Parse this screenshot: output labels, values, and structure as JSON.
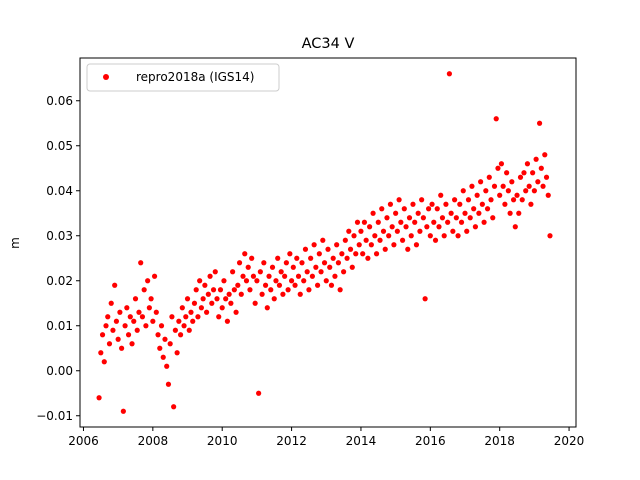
{
  "chart_data": {
    "type": "scatter",
    "title": "AC34 V",
    "xlabel": "",
    "ylabel": "m",
    "xlim": [
      2005.9,
      2020.2
    ],
    "ylim": [
      -0.0125,
      0.0695
    ],
    "xticks": [
      2006,
      2008,
      2010,
      2012,
      2014,
      2016,
      2018,
      2020
    ],
    "xtick_labels": [
      "2006",
      "2008",
      "2010",
      "2012",
      "2014",
      "2016",
      "2018",
      "2020"
    ],
    "yticks": [
      -0.01,
      0.0,
      0.01,
      0.02,
      0.03,
      0.04,
      0.05,
      0.06
    ],
    "ytick_labels": [
      "−0.01",
      "0.00",
      "0.01",
      "0.02",
      "0.03",
      "0.04",
      "0.05",
      "0.06"
    ],
    "legend": {
      "position": "upper-left",
      "entries": [
        "repro2018a (IGS14)"
      ]
    },
    "grid": false,
    "series": [
      {
        "name": "repro2018a (IGS14)",
        "color": "#ff0000",
        "marker": "circle",
        "points": [
          [
            2006.45,
            -0.006
          ],
          [
            2006.5,
            0.004
          ],
          [
            2006.55,
            0.008
          ],
          [
            2006.6,
            0.002
          ],
          [
            2006.65,
            0.01
          ],
          [
            2006.7,
            0.012
          ],
          [
            2006.75,
            0.006
          ],
          [
            2006.8,
            0.015
          ],
          [
            2006.85,
            0.009
          ],
          [
            2006.9,
            0.019
          ],
          [
            2006.95,
            0.011
          ],
          [
            2007.0,
            0.007
          ],
          [
            2007.05,
            0.013
          ],
          [
            2007.1,
            0.005
          ],
          [
            2007.15,
            -0.009
          ],
          [
            2007.2,
            0.01
          ],
          [
            2007.25,
            0.014
          ],
          [
            2007.3,
            0.008
          ],
          [
            2007.35,
            0.012
          ],
          [
            2007.4,
            0.006
          ],
          [
            2007.45,
            0.011
          ],
          [
            2007.5,
            0.016
          ],
          [
            2007.55,
            0.009
          ],
          [
            2007.6,
            0.013
          ],
          [
            2007.65,
            0.024
          ],
          [
            2007.7,
            0.012
          ],
          [
            2007.75,
            0.018
          ],
          [
            2007.8,
            0.01
          ],
          [
            2007.85,
            0.02
          ],
          [
            2007.9,
            0.014
          ],
          [
            2007.95,
            0.016
          ],
          [
            2008.0,
            0.011
          ],
          [
            2008.05,
            0.021
          ],
          [
            2008.1,
            0.013
          ],
          [
            2008.15,
            0.008
          ],
          [
            2008.2,
            0.005
          ],
          [
            2008.25,
            0.01
          ],
          [
            2008.3,
            0.003
          ],
          [
            2008.35,
            0.007
          ],
          [
            2008.4,
            0.001
          ],
          [
            2008.45,
            -0.003
          ],
          [
            2008.5,
            0.006
          ],
          [
            2008.55,
            0.012
          ],
          [
            2008.6,
            -0.008
          ],
          [
            2008.65,
            0.009
          ],
          [
            2008.7,
            0.004
          ],
          [
            2008.75,
            0.011
          ],
          [
            2008.8,
            0.008
          ],
          [
            2008.85,
            0.014
          ],
          [
            2008.9,
            0.01
          ],
          [
            2008.95,
            0.012
          ],
          [
            2009.0,
            0.016
          ],
          [
            2009.05,
            0.009
          ],
          [
            2009.1,
            0.013
          ],
          [
            2009.15,
            0.011
          ],
          [
            2009.2,
            0.015
          ],
          [
            2009.25,
            0.018
          ],
          [
            2009.3,
            0.012
          ],
          [
            2009.35,
            0.02
          ],
          [
            2009.4,
            0.014
          ],
          [
            2009.45,
            0.016
          ],
          [
            2009.5,
            0.019
          ],
          [
            2009.55,
            0.013
          ],
          [
            2009.6,
            0.017
          ],
          [
            2009.65,
            0.021
          ],
          [
            2009.7,
            0.015
          ],
          [
            2009.75,
            0.018
          ],
          [
            2009.8,
            0.022
          ],
          [
            2009.85,
            0.016
          ],
          [
            2009.9,
            0.012
          ],
          [
            2009.95,
            0.018
          ],
          [
            2010.0,
            0.014
          ],
          [
            2010.05,
            0.02
          ],
          [
            2010.1,
            0.016
          ],
          [
            2010.15,
            0.011
          ],
          [
            2010.2,
            0.017
          ],
          [
            2010.25,
            0.015
          ],
          [
            2010.3,
            0.022
          ],
          [
            2010.35,
            0.018
          ],
          [
            2010.4,
            0.013
          ],
          [
            2010.45,
            0.019
          ],
          [
            2010.5,
            0.024
          ],
          [
            2010.55,
            0.017
          ],
          [
            2010.6,
            0.021
          ],
          [
            2010.65,
            0.026
          ],
          [
            2010.7,
            0.02
          ],
          [
            2010.75,
            0.023
          ],
          [
            2010.8,
            0.018
          ],
          [
            2010.85,
            0.025
          ],
          [
            2010.9,
            0.021
          ],
          [
            2010.95,
            0.015
          ],
          [
            2011.0,
            0.02
          ],
          [
            2011.05,
            -0.005
          ],
          [
            2011.1,
            0.022
          ],
          [
            2011.15,
            0.017
          ],
          [
            2011.2,
            0.024
          ],
          [
            2011.25,
            0.019
          ],
          [
            2011.3,
            0.014
          ],
          [
            2011.35,
            0.021
          ],
          [
            2011.4,
            0.018
          ],
          [
            2011.45,
            0.023
          ],
          [
            2011.5,
            0.016
          ],
          [
            2011.55,
            0.02
          ],
          [
            2011.6,
            0.025
          ],
          [
            2011.65,
            0.019
          ],
          [
            2011.7,
            0.022
          ],
          [
            2011.75,
            0.017
          ],
          [
            2011.8,
            0.021
          ],
          [
            2011.85,
            0.024
          ],
          [
            2011.9,
            0.018
          ],
          [
            2011.95,
            0.026
          ],
          [
            2012.0,
            0.02
          ],
          [
            2012.05,
            0.023
          ],
          [
            2012.1,
            0.019
          ],
          [
            2012.15,
            0.025
          ],
          [
            2012.2,
            0.021
          ],
          [
            2012.25,
            0.017
          ],
          [
            2012.3,
            0.024
          ],
          [
            2012.35,
            0.02
          ],
          [
            2012.4,
            0.027
          ],
          [
            2012.45,
            0.022
          ],
          [
            2012.5,
            0.018
          ],
          [
            2012.55,
            0.025
          ],
          [
            2012.6,
            0.021
          ],
          [
            2012.65,
            0.028
          ],
          [
            2012.7,
            0.023
          ],
          [
            2012.75,
            0.019
          ],
          [
            2012.8,
            0.026
          ],
          [
            2012.85,
            0.022
          ],
          [
            2012.9,
            0.029
          ],
          [
            2012.95,
            0.024
          ],
          [
            2013.0,
            0.02
          ],
          [
            2013.05,
            0.027
          ],
          [
            2013.1,
            0.023
          ],
          [
            2013.15,
            0.019
          ],
          [
            2013.2,
            0.025
          ],
          [
            2013.25,
            0.021
          ],
          [
            2013.3,
            0.028
          ],
          [
            2013.35,
            0.024
          ],
          [
            2013.4,
            0.018
          ],
          [
            2013.45,
            0.026
          ],
          [
            2013.5,
            0.022
          ],
          [
            2013.55,
            0.029
          ],
          [
            2013.6,
            0.025
          ],
          [
            2013.65,
            0.031
          ],
          [
            2013.7,
            0.027
          ],
          [
            2013.75,
            0.023
          ],
          [
            2013.8,
            0.03
          ],
          [
            2013.85,
            0.026
          ],
          [
            2013.9,
            0.033
          ],
          [
            2013.95,
            0.028
          ],
          [
            2014.0,
            0.031
          ],
          [
            2014.05,
            0.026
          ],
          [
            2014.1,
            0.033
          ],
          [
            2014.15,
            0.029
          ],
          [
            2014.2,
            0.025
          ],
          [
            2014.25,
            0.032
          ],
          [
            2014.3,
            0.028
          ],
          [
            2014.35,
            0.035
          ],
          [
            2014.4,
            0.03
          ],
          [
            2014.45,
            0.026
          ],
          [
            2014.5,
            0.033
          ],
          [
            2014.55,
            0.029
          ],
          [
            2014.6,
            0.036
          ],
          [
            2014.65,
            0.031
          ],
          [
            2014.7,
            0.027
          ],
          [
            2014.75,
            0.034
          ],
          [
            2014.8,
            0.03
          ],
          [
            2014.85,
            0.037
          ],
          [
            2014.9,
            0.032
          ],
          [
            2014.95,
            0.028
          ],
          [
            2015.0,
            0.035
          ],
          [
            2015.05,
            0.031
          ],
          [
            2015.1,
            0.038
          ],
          [
            2015.15,
            0.033
          ],
          [
            2015.2,
            0.029
          ],
          [
            2015.25,
            0.036
          ],
          [
            2015.3,
            0.032
          ],
          [
            2015.35,
            0.027
          ],
          [
            2015.4,
            0.034
          ],
          [
            2015.45,
            0.03
          ],
          [
            2015.5,
            0.037
          ],
          [
            2015.55,
            0.033
          ],
          [
            2015.6,
            0.028
          ],
          [
            2015.65,
            0.035
          ],
          [
            2015.7,
            0.031
          ],
          [
            2015.75,
            0.038
          ],
          [
            2015.8,
            0.034
          ],
          [
            2015.85,
            0.016
          ],
          [
            2015.9,
            0.032
          ],
          [
            2015.95,
            0.036
          ],
          [
            2016.0,
            0.03
          ],
          [
            2016.05,
            0.037
          ],
          [
            2016.1,
            0.033
          ],
          [
            2016.15,
            0.029
          ],
          [
            2016.2,
            0.036
          ],
          [
            2016.25,
            0.032
          ],
          [
            2016.3,
            0.039
          ],
          [
            2016.35,
            0.034
          ],
          [
            2016.4,
            0.03
          ],
          [
            2016.45,
            0.037
          ],
          [
            2016.5,
            0.033
          ],
          [
            2016.55,
            0.066
          ],
          [
            2016.6,
            0.035
          ],
          [
            2016.65,
            0.031
          ],
          [
            2016.7,
            0.038
          ],
          [
            2016.75,
            0.034
          ],
          [
            2016.8,
            0.03
          ],
          [
            2016.85,
            0.037
          ],
          [
            2016.9,
            0.033
          ],
          [
            2016.95,
            0.04
          ],
          [
            2017.0,
            0.035
          ],
          [
            2017.05,
            0.031
          ],
          [
            2017.1,
            0.038
          ],
          [
            2017.15,
            0.034
          ],
          [
            2017.2,
            0.041
          ],
          [
            2017.25,
            0.036
          ],
          [
            2017.3,
            0.032
          ],
          [
            2017.35,
            0.039
          ],
          [
            2017.4,
            0.035
          ],
          [
            2017.45,
            0.042
          ],
          [
            2017.5,
            0.037
          ],
          [
            2017.55,
            0.033
          ],
          [
            2017.6,
            0.04
          ],
          [
            2017.65,
            0.036
          ],
          [
            2017.7,
            0.043
          ],
          [
            2017.75,
            0.038
          ],
          [
            2017.8,
            0.034
          ],
          [
            2017.85,
            0.041
          ],
          [
            2017.9,
            0.056
          ],
          [
            2017.95,
            0.045
          ],
          [
            2018.0,
            0.039
          ],
          [
            2018.05,
            0.046
          ],
          [
            2018.1,
            0.041
          ],
          [
            2018.15,
            0.037
          ],
          [
            2018.2,
            0.044
          ],
          [
            2018.25,
            0.04
          ],
          [
            2018.3,
            0.035
          ],
          [
            2018.35,
            0.042
          ],
          [
            2018.4,
            0.038
          ],
          [
            2018.45,
            0.032
          ],
          [
            2018.5,
            0.039
          ],
          [
            2018.55,
            0.035
          ],
          [
            2018.6,
            0.043
          ],
          [
            2018.65,
            0.038
          ],
          [
            2018.7,
            0.044
          ],
          [
            2018.75,
            0.04
          ],
          [
            2018.8,
            0.046
          ],
          [
            2018.85,
            0.041
          ],
          [
            2018.9,
            0.037
          ],
          [
            2018.95,
            0.044
          ],
          [
            2019.0,
            0.04
          ],
          [
            2019.05,
            0.047
          ],
          [
            2019.1,
            0.042
          ],
          [
            2019.15,
            0.055
          ],
          [
            2019.2,
            0.045
          ],
          [
            2019.25,
            0.041
          ],
          [
            2019.3,
            0.048
          ],
          [
            2019.35,
            0.043
          ],
          [
            2019.4,
            0.039
          ],
          [
            2019.45,
            0.03
          ]
        ]
      }
    ]
  }
}
